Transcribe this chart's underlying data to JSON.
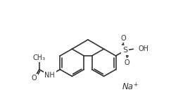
{
  "bg": "#ffffff",
  "lc": "#333333",
  "lw": 1.2,
  "fs": 7.0,
  "dpi": 100,
  "figw": 2.7,
  "figh": 1.52,
  "xlim": [
    0,
    10
  ],
  "ylim": [
    0.5,
    6.5
  ],
  "ring_r": 0.78,
  "bl": 0.68,
  "na_text": "Na",
  "plus_text": "+",
  "nh_text": "NH",
  "o_text": "O",
  "ch3_text": "CH₃",
  "s_text": "S",
  "oh_text": "OH"
}
